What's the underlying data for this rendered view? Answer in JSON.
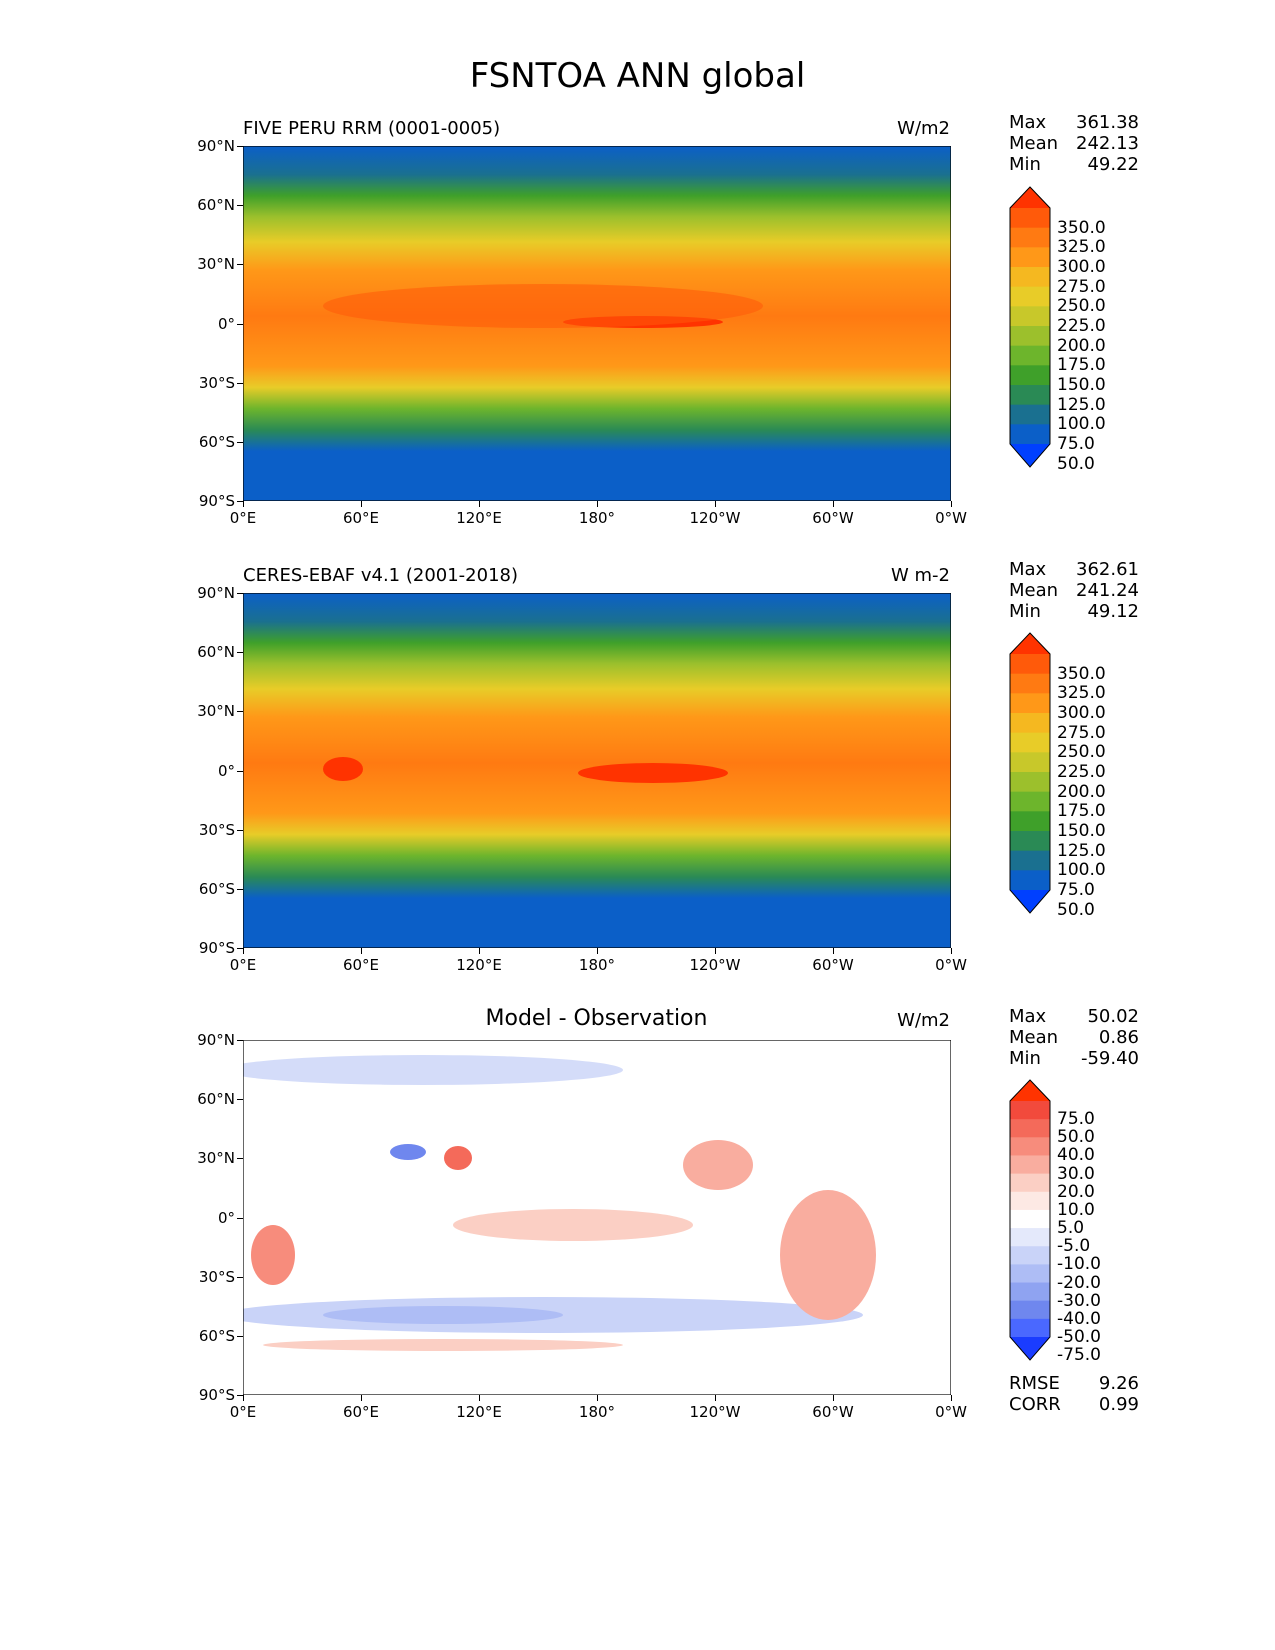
{
  "figure_title": "FSNTOA ANN global",
  "panels": [
    {
      "title": "FIVE PERU RRM (0001-0005)",
      "units": "W/m2",
      "stats": [
        [
          "Max",
          "361.38"
        ],
        [
          "Mean",
          "242.13"
        ],
        [
          "Min",
          "49.22"
        ]
      ],
      "colorbar_labels": [
        "350.0",
        "325.0",
        "300.0",
        "275.0",
        "250.0",
        "225.0",
        "200.0",
        "175.0",
        "150.0",
        "125.0",
        "100.0",
        "75.0",
        "50.0"
      ],
      "colorbar_colors": [
        "#ff3300",
        "#ff5a0a",
        "#ff7a12",
        "#ff9818",
        "#f5b820",
        "#e8cc28",
        "#c8c82a",
        "#9cc02c",
        "#6db52c",
        "#3fa02a",
        "#2a8a55",
        "#1a7090",
        "#0b5fc8",
        "#0040ff"
      ]
    },
    {
      "title": "CERES-EBAF v4.1 (2001-2018)",
      "units": "W m-2",
      "stats": [
        [
          "Max",
          "362.61"
        ],
        [
          "Mean",
          "241.24"
        ],
        [
          "Min",
          "49.12"
        ]
      ],
      "colorbar_labels": [
        "350.0",
        "325.0",
        "300.0",
        "275.0",
        "250.0",
        "225.0",
        "200.0",
        "175.0",
        "150.0",
        "125.0",
        "100.0",
        "75.0",
        "50.0"
      ],
      "colorbar_colors": [
        "#ff3300",
        "#ff5a0a",
        "#ff7a12",
        "#ff9818",
        "#f5b820",
        "#e8cc28",
        "#c8c82a",
        "#9cc02c",
        "#6db52c",
        "#3fa02a",
        "#2a8a55",
        "#1a7090",
        "#0b5fc8",
        "#0040ff"
      ]
    },
    {
      "title": "Model - Observation",
      "units": "W/m2",
      "stats": [
        [
          "Max",
          "50.02"
        ],
        [
          "Mean",
          "0.86"
        ],
        [
          "Min",
          "-59.40"
        ]
      ],
      "colorbar_labels": [
        "75.0",
        "50.0",
        "40.0",
        "30.0",
        "20.0",
        "10.0",
        "5.0",
        "-5.0",
        "-10.0",
        "-20.0",
        "-30.0",
        "-40.0",
        "-50.0",
        "-75.0"
      ],
      "colorbar_colors": [
        "#ff3300",
        "#f24a3c",
        "#f46a5a",
        "#f78c7c",
        "#f9ad9f",
        "#fbcfc4",
        "#fde9e4",
        "#ffffff",
        "#e4e9fb",
        "#c9d3f8",
        "#aebdf5",
        "#8fa3f1",
        "#6f87ee",
        "#4a68ff",
        "#1a3cff"
      ],
      "rmse_corr": [
        [
          "RMSE",
          "9.26"
        ],
        [
          "CORR",
          "0.99"
        ]
      ]
    }
  ],
  "lat_ticks": [
    "90°N",
    "60°N",
    "30°N",
    "0°",
    "30°S",
    "60°S",
    "90°S"
  ],
  "lon_ticks": [
    "0°E",
    "60°E",
    "120°E",
    "180°",
    "120°W",
    "60°W",
    "0°W"
  ]
}
